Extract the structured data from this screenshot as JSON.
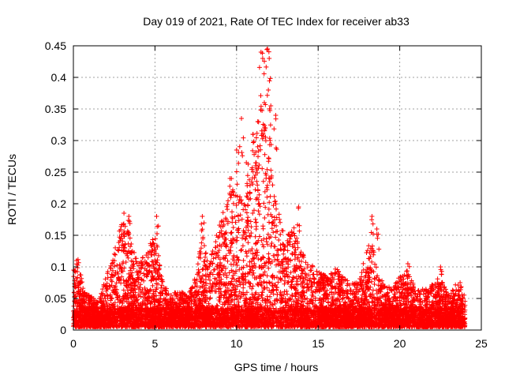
{
  "chart_data": {
    "type": "scatter",
    "title": "Day 019 of 2021, Rate Of TEC Index for receiver ab33",
    "xlabel": "GPS time / hours",
    "ylabel": "ROTI / TECUs",
    "xlim": [
      0,
      25
    ],
    "ylim": [
      0,
      0.45
    ],
    "xticks": [
      0,
      5,
      10,
      15,
      20,
      25
    ],
    "xtick_labels": [
      "0",
      "5",
      "10",
      "15",
      "20",
      "25"
    ],
    "yticks": [
      0,
      0.05,
      0.1,
      0.15,
      0.2,
      0.25,
      0.3,
      0.35,
      0.4,
      0.45
    ],
    "ytick_labels": [
      "0",
      "0.05",
      "0.1",
      "0.15",
      "0.2",
      "0.25",
      "0.3",
      "0.35",
      "0.4",
      "0.45"
    ],
    "grid": true,
    "marker": "+",
    "color": "#ff0000",
    "envelope": {
      "x": [
        0,
        0.3,
        0.6,
        1.0,
        1.5,
        2.0,
        2.5,
        3.0,
        3.3,
        3.6,
        4.0,
        4.5,
        5.0,
        5.5,
        6.0,
        6.5,
        7.0,
        7.5,
        7.9,
        8.3,
        8.7,
        9.0,
        9.4,
        9.8,
        10.2,
        10.6,
        11.0,
        11.4,
        11.8,
        12.0,
        12.3,
        12.6,
        13.0,
        13.4,
        13.8,
        14.2,
        14.6,
        15.0,
        15.5,
        16.0,
        16.5,
        17.0,
        17.5,
        18.0,
        18.3,
        18.6,
        19.0,
        19.5,
        20.0,
        20.5,
        21.0,
        21.5,
        22.0,
        22.5,
        23.0,
        23.5,
        24.0
      ],
      "y": [
        0.09,
        0.11,
        0.06,
        0.05,
        0.04,
        0.08,
        0.12,
        0.17,
        0.16,
        0.13,
        0.1,
        0.12,
        0.15,
        0.07,
        0.05,
        0.06,
        0.05,
        0.08,
        0.15,
        0.1,
        0.14,
        0.17,
        0.2,
        0.22,
        0.24,
        0.21,
        0.27,
        0.3,
        0.33,
        0.32,
        0.22,
        0.18,
        0.14,
        0.17,
        0.13,
        0.11,
        0.1,
        0.09,
        0.08,
        0.1,
        0.08,
        0.07,
        0.07,
        0.13,
        0.14,
        0.09,
        0.07,
        0.06,
        0.08,
        0.09,
        0.06,
        0.06,
        0.07,
        0.08,
        0.05,
        0.07,
        0.05
      ]
    },
    "peaks": [
      {
        "x": 0.2,
        "y": 0.11
      },
      {
        "x": 3.1,
        "y": 0.185
      },
      {
        "x": 3.4,
        "y": 0.18
      },
      {
        "x": 5.1,
        "y": 0.18
      },
      {
        "x": 7.9,
        "y": 0.18
      },
      {
        "x": 9.6,
        "y": 0.24
      },
      {
        "x": 10.0,
        "y": 0.285
      },
      {
        "x": 10.3,
        "y": 0.335
      },
      {
        "x": 10.6,
        "y": 0.265
      },
      {
        "x": 11.0,
        "y": 0.31
      },
      {
        "x": 11.3,
        "y": 0.33
      },
      {
        "x": 11.5,
        "y": 0.44
      },
      {
        "x": 11.6,
        "y": 0.43
      },
      {
        "x": 11.7,
        "y": 0.36
      },
      {
        "x": 11.9,
        "y": 0.445
      },
      {
        "x": 12.0,
        "y": 0.43
      },
      {
        "x": 12.1,
        "y": 0.355
      },
      {
        "x": 12.4,
        "y": 0.34
      },
      {
        "x": 13.8,
        "y": 0.195
      },
      {
        "x": 18.3,
        "y": 0.18
      },
      {
        "x": 18.6,
        "y": 0.16
      },
      {
        "x": 20.5,
        "y": 0.105
      },
      {
        "x": 22.5,
        "y": 0.1
      },
      {
        "x": 23.7,
        "y": 0.075
      }
    ]
  }
}
